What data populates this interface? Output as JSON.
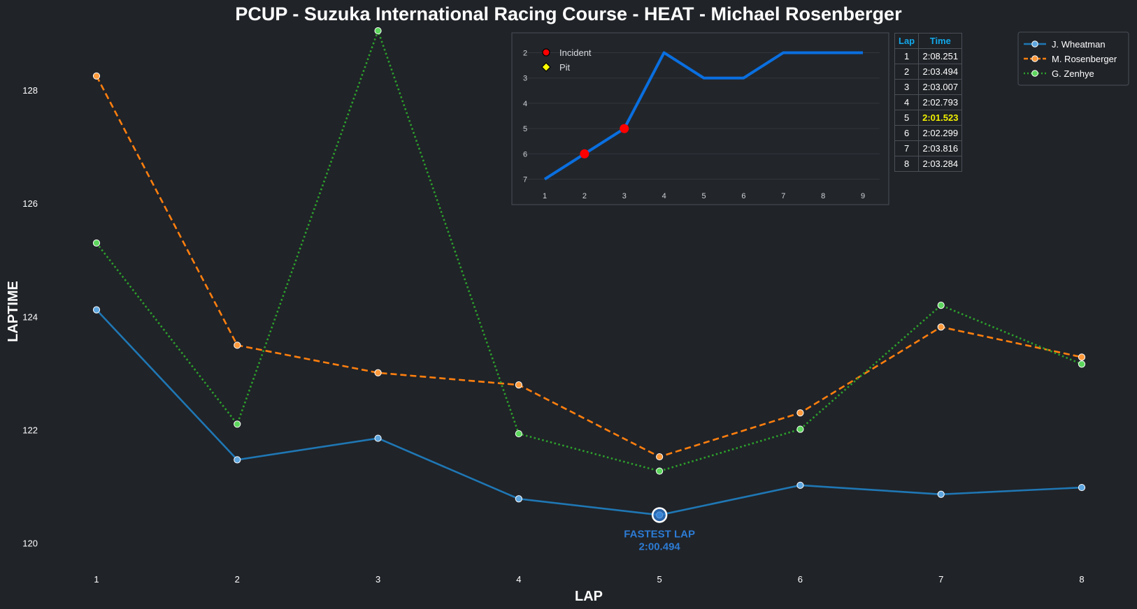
{
  "chart_data": [
    {
      "type": "line",
      "title": "PCUP - Suzuka International Racing Course - HEAT - Michael Rosenberger",
      "xlabel": "LAP",
      "ylabel": "LAPTIME",
      "x": [
        1,
        2,
        3,
        4,
        5,
        6,
        7,
        8
      ],
      "ylim": [
        119.5,
        129.1
      ],
      "yticks": [
        120,
        122,
        124,
        126,
        128
      ],
      "grid": false,
      "legend_position": "top-right",
      "series": [
        {
          "name": "J. Wheatman",
          "values": [
            124.12,
            121.47,
            121.85,
            120.78,
            120.494,
            121.02,
            120.86,
            120.98
          ],
          "color": "#1f77b4",
          "style": "solid"
        },
        {
          "name": "M. Rosenberger",
          "values": [
            128.251,
            123.494,
            123.007,
            122.793,
            121.523,
            122.299,
            123.816,
            123.284
          ],
          "color": "#ff7f0e",
          "style": "dashed"
        },
        {
          "name": "G. Zenhye",
          "values": [
            125.3,
            122.1,
            129.05,
            121.93,
            121.27,
            122.01,
            124.2,
            123.16
          ],
          "color": "#2ca02c",
          "style": "dotted"
        }
      ],
      "annotation": {
        "series": "J. Wheatman",
        "x": 5,
        "y": 120.494,
        "label": "FASTEST LAP",
        "value": "2:00.494",
        "color": "#2c7bd4"
      }
    },
    {
      "type": "line",
      "title": "",
      "x": [
        1,
        2,
        3,
        4,
        5,
        6,
        7,
        8,
        9
      ],
      "values": [
        7,
        6,
        5,
        2,
        3,
        3,
        2,
        2,
        2
      ],
      "ylim": [
        7.4,
        1.6
      ],
      "yticks": [
        2,
        3,
        4,
        5,
        6,
        7
      ],
      "y_inverted": true,
      "color": "#0a6fe0",
      "legend": [
        {
          "name": "Incident",
          "marker": "circle",
          "color": "#ff0000"
        },
        {
          "name": "Pit",
          "marker": "diamond",
          "color": "#ffff00"
        }
      ],
      "incidents": [
        {
          "x": 2,
          "y": 6
        },
        {
          "x": 3,
          "y": 5
        }
      ],
      "pits": []
    }
  ],
  "lap_table": {
    "headers": [
      "Lap",
      "Time"
    ],
    "rows": [
      {
        "lap": "1",
        "time": "2:08.251",
        "best": false
      },
      {
        "lap": "2",
        "time": "2:03.494",
        "best": false
      },
      {
        "lap": "3",
        "time": "2:03.007",
        "best": false
      },
      {
        "lap": "4",
        "time": "2:02.793",
        "best": false
      },
      {
        "lap": "5",
        "time": "2:01.523",
        "best": true
      },
      {
        "lap": "6",
        "time": "2:02.299",
        "best": false
      },
      {
        "lap": "7",
        "time": "2:03.816",
        "best": false
      },
      {
        "lap": "8",
        "time": "2:03.284",
        "best": false
      }
    ]
  },
  "colors": {
    "background": "#202328",
    "best_lap": "#f0f000",
    "table_header": "#12a8ea"
  }
}
